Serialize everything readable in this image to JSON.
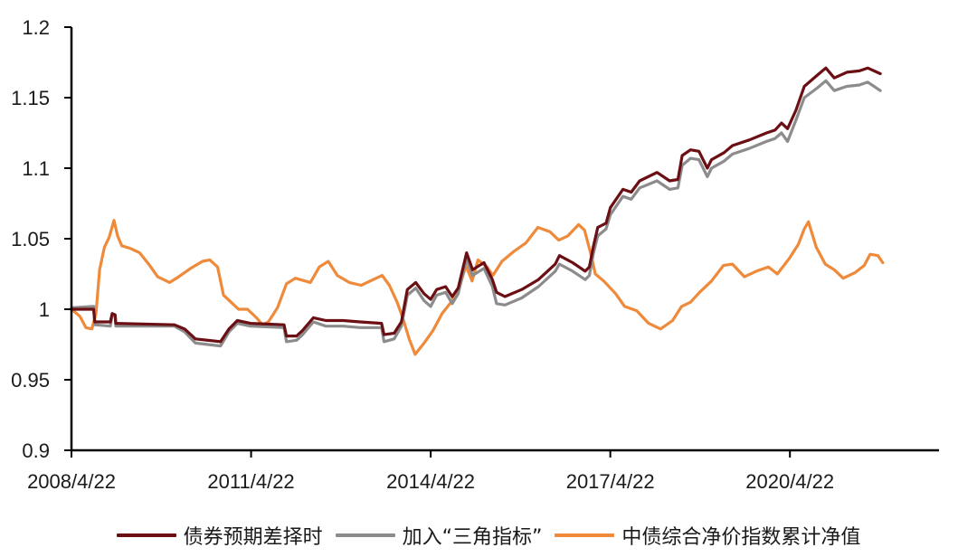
{
  "chart_data": {
    "type": "line",
    "title": "",
    "xlabel": "",
    "ylabel": "",
    "ylim": [
      0.9,
      1.2
    ],
    "xlim": [
      2008.31,
      2022.8
    ],
    "grid": false,
    "legend_position": "bottom",
    "y_ticks": [
      "0.9",
      "0.95",
      "1",
      "1.05",
      "1.1",
      "1.15",
      "1.2"
    ],
    "y_tick_values": [
      0.9,
      0.95,
      1.0,
      1.05,
      1.1,
      1.15,
      1.2
    ],
    "x_ticks": [
      "2008/4/22",
      "2011/4/22",
      "2014/4/22",
      "2017/4/22",
      "2020/4/22"
    ],
    "x_tick_values": [
      2008.31,
      2011.31,
      2014.31,
      2017.31,
      2020.31
    ],
    "series": [
      {
        "name": "债券预期差择时",
        "color": "#6b0f14",
        "points": [
          [
            2008.31,
            1.0
          ],
          [
            2008.68,
            1.0
          ],
          [
            2008.7,
            0.991
          ],
          [
            2008.96,
            0.991
          ],
          [
            2008.99,
            0.997
          ],
          [
            2009.04,
            0.996
          ],
          [
            2009.05,
            0.99
          ],
          [
            2010.03,
            0.989
          ],
          [
            2010.2,
            0.986
          ],
          [
            2010.38,
            0.979
          ],
          [
            2010.8,
            0.977
          ],
          [
            2010.94,
            0.986
          ],
          [
            2011.08,
            0.992
          ],
          [
            2011.3,
            0.99
          ],
          [
            2011.86,
            0.989
          ],
          [
            2011.9,
            0.981
          ],
          [
            2012.07,
            0.981
          ],
          [
            2012.17,
            0.985
          ],
          [
            2012.35,
            0.994
          ],
          [
            2012.56,
            0.992
          ],
          [
            2012.85,
            0.992
          ],
          [
            2013.13,
            0.991
          ],
          [
            2013.49,
            0.99
          ],
          [
            2013.53,
            0.982
          ],
          [
            2013.7,
            0.983
          ],
          [
            2013.82,
            0.991
          ],
          [
            2013.92,
            1.014
          ],
          [
            2014.06,
            1.019
          ],
          [
            2014.2,
            1.011
          ],
          [
            2014.31,
            1.007
          ],
          [
            2014.41,
            1.014
          ],
          [
            2014.56,
            1.016
          ],
          [
            2014.67,
            1.009
          ],
          [
            2014.77,
            1.015
          ],
          [
            2014.91,
            1.04
          ],
          [
            2015.01,
            1.028
          ],
          [
            2015.2,
            1.033
          ],
          [
            2015.34,
            1.021
          ],
          [
            2015.41,
            1.012
          ],
          [
            2015.55,
            1.009
          ],
          [
            2015.83,
            1.014
          ],
          [
            2016.11,
            1.021
          ],
          [
            2016.39,
            1.032
          ],
          [
            2016.46,
            1.038
          ],
          [
            2016.68,
            1.033
          ],
          [
            2016.89,
            1.027
          ],
          [
            2016.96,
            1.03
          ],
          [
            2017.03,
            1.045
          ],
          [
            2017.1,
            1.058
          ],
          [
            2017.24,
            1.061
          ],
          [
            2017.31,
            1.072
          ],
          [
            2017.52,
            1.085
          ],
          [
            2017.66,
            1.083
          ],
          [
            2017.8,
            1.091
          ],
          [
            2018.09,
            1.097
          ],
          [
            2018.3,
            1.091
          ],
          [
            2018.44,
            1.092
          ],
          [
            2018.51,
            1.109
          ],
          [
            2018.65,
            1.113
          ],
          [
            2018.79,
            1.112
          ],
          [
            2018.93,
            1.1
          ],
          [
            2019.0,
            1.106
          ],
          [
            2019.21,
            1.111
          ],
          [
            2019.35,
            1.116
          ],
          [
            2019.63,
            1.12
          ],
          [
            2019.92,
            1.125
          ],
          [
            2020.06,
            1.127
          ],
          [
            2020.17,
            1.132
          ],
          [
            2020.27,
            1.128
          ],
          [
            2020.41,
            1.141
          ],
          [
            2020.55,
            1.158
          ],
          [
            2020.77,
            1.166
          ],
          [
            2020.91,
            1.171
          ],
          [
            2021.05,
            1.164
          ],
          [
            2021.26,
            1.168
          ],
          [
            2021.47,
            1.169
          ],
          [
            2021.61,
            1.171
          ],
          [
            2021.82,
            1.167
          ]
        ]
      },
      {
        "name": "加入“三角指标”",
        "color": "#8c8c8c",
        "points": [
          [
            2008.31,
            1.001
          ],
          [
            2008.68,
            1.002
          ],
          [
            2008.7,
            0.989
          ],
          [
            2008.96,
            0.988
          ],
          [
            2008.99,
            0.996
          ],
          [
            2009.04,
            0.995
          ],
          [
            2009.05,
            0.988
          ],
          [
            2010.03,
            0.988
          ],
          [
            2010.2,
            0.984
          ],
          [
            2010.38,
            0.976
          ],
          [
            2010.8,
            0.974
          ],
          [
            2010.94,
            0.984
          ],
          [
            2011.08,
            0.99
          ],
          [
            2011.3,
            0.988
          ],
          [
            2011.86,
            0.987
          ],
          [
            2011.9,
            0.977
          ],
          [
            2012.07,
            0.978
          ],
          [
            2012.17,
            0.982
          ],
          [
            2012.35,
            0.991
          ],
          [
            2012.56,
            0.988
          ],
          [
            2012.85,
            0.988
          ],
          [
            2013.13,
            0.987
          ],
          [
            2013.49,
            0.987
          ],
          [
            2013.53,
            0.977
          ],
          [
            2013.7,
            0.979
          ],
          [
            2013.82,
            0.988
          ],
          [
            2013.92,
            1.01
          ],
          [
            2014.06,
            1.015
          ],
          [
            2014.2,
            1.006
          ],
          [
            2014.31,
            1.002
          ],
          [
            2014.41,
            1.01
          ],
          [
            2014.56,
            1.012
          ],
          [
            2014.67,
            1.004
          ],
          [
            2014.77,
            1.011
          ],
          [
            2014.91,
            1.036
          ],
          [
            2015.01,
            1.024
          ],
          [
            2015.2,
            1.029
          ],
          [
            2015.34,
            1.016
          ],
          [
            2015.41,
            1.004
          ],
          [
            2015.55,
            1.003
          ],
          [
            2015.83,
            1.008
          ],
          [
            2016.11,
            1.016
          ],
          [
            2016.39,
            1.027
          ],
          [
            2016.46,
            1.032
          ],
          [
            2016.68,
            1.027
          ],
          [
            2016.89,
            1.021
          ],
          [
            2016.96,
            1.024
          ],
          [
            2017.03,
            1.04
          ],
          [
            2017.1,
            1.052
          ],
          [
            2017.24,
            1.057
          ],
          [
            2017.31,
            1.067
          ],
          [
            2017.52,
            1.08
          ],
          [
            2017.66,
            1.078
          ],
          [
            2017.8,
            1.086
          ],
          [
            2018.09,
            1.091
          ],
          [
            2018.3,
            1.085
          ],
          [
            2018.44,
            1.086
          ],
          [
            2018.51,
            1.102
          ],
          [
            2018.65,
            1.107
          ],
          [
            2018.79,
            1.106
          ],
          [
            2018.93,
            1.094
          ],
          [
            2019.0,
            1.1
          ],
          [
            2019.21,
            1.105
          ],
          [
            2019.35,
            1.11
          ],
          [
            2019.63,
            1.114
          ],
          [
            2019.92,
            1.119
          ],
          [
            2020.06,
            1.121
          ],
          [
            2020.17,
            1.125
          ],
          [
            2020.27,
            1.119
          ],
          [
            2020.41,
            1.134
          ],
          [
            2020.55,
            1.15
          ],
          [
            2020.77,
            1.157
          ],
          [
            2020.91,
            1.162
          ],
          [
            2021.05,
            1.155
          ],
          [
            2021.26,
            1.158
          ],
          [
            2021.47,
            1.159
          ],
          [
            2021.61,
            1.161
          ],
          [
            2021.82,
            1.155
          ]
        ]
      },
      {
        "name": "中债综合净价指数累计净值",
        "color": "#ee8a3a",
        "points": [
          [
            2008.31,
            1.0
          ],
          [
            2008.45,
            0.995
          ],
          [
            2008.55,
            0.987
          ],
          [
            2008.65,
            0.986
          ],
          [
            2008.72,
            0.997
          ],
          [
            2008.78,
            1.028
          ],
          [
            2008.86,
            1.044
          ],
          [
            2008.94,
            1.051
          ],
          [
            2009.02,
            1.063
          ],
          [
            2009.08,
            1.052
          ],
          [
            2009.15,
            1.045
          ],
          [
            2009.3,
            1.043
          ],
          [
            2009.45,
            1.04
          ],
          [
            2009.6,
            1.032
          ],
          [
            2009.75,
            1.023
          ],
          [
            2009.95,
            1.019
          ],
          [
            2010.1,
            1.023
          ],
          [
            2010.3,
            1.029
          ],
          [
            2010.5,
            1.034
          ],
          [
            2010.62,
            1.035
          ],
          [
            2010.75,
            1.03
          ],
          [
            2010.85,
            1.01
          ],
          [
            2010.95,
            1.006
          ],
          [
            2011.1,
            1.0
          ],
          [
            2011.25,
            1.0
          ],
          [
            2011.4,
            0.994
          ],
          [
            2011.5,
            0.989
          ],
          [
            2011.6,
            0.991
          ],
          [
            2011.75,
            1.001
          ],
          [
            2011.9,
            1.018
          ],
          [
            2012.05,
            1.022
          ],
          [
            2012.3,
            1.019
          ],
          [
            2012.45,
            1.03
          ],
          [
            2012.6,
            1.034
          ],
          [
            2012.75,
            1.024
          ],
          [
            2012.95,
            1.019
          ],
          [
            2013.15,
            1.017
          ],
          [
            2013.35,
            1.021
          ],
          [
            2013.5,
            1.024
          ],
          [
            2013.62,
            1.017
          ],
          [
            2013.75,
            1.005
          ],
          [
            2013.85,
            0.993
          ],
          [
            2013.95,
            0.979
          ],
          [
            2014.05,
            0.968
          ],
          [
            2014.2,
            0.976
          ],
          [
            2014.35,
            0.985
          ],
          [
            2014.5,
            0.997
          ],
          [
            2014.65,
            1.005
          ],
          [
            2014.8,
            1.017
          ],
          [
            2014.9,
            1.031
          ],
          [
            2015.0,
            1.02
          ],
          [
            2015.1,
            1.035
          ],
          [
            2015.25,
            1.03
          ],
          [
            2015.35,
            1.024
          ],
          [
            2015.5,
            1.034
          ],
          [
            2015.7,
            1.041
          ],
          [
            2015.9,
            1.047
          ],
          [
            2016.1,
            1.058
          ],
          [
            2016.3,
            1.055
          ],
          [
            2016.45,
            1.049
          ],
          [
            2016.6,
            1.052
          ],
          [
            2016.78,
            1.06
          ],
          [
            2016.88,
            1.056
          ],
          [
            2016.98,
            1.04
          ],
          [
            2017.06,
            1.025
          ],
          [
            2017.2,
            1.02
          ],
          [
            2017.4,
            1.011
          ],
          [
            2017.55,
            1.002
          ],
          [
            2017.75,
            0.999
          ],
          [
            2017.95,
            0.99
          ],
          [
            2018.15,
            0.986
          ],
          [
            2018.35,
            0.992
          ],
          [
            2018.5,
            1.002
          ],
          [
            2018.65,
            1.005
          ],
          [
            2018.8,
            1.012
          ],
          [
            2019.0,
            1.02
          ],
          [
            2019.2,
            1.031
          ],
          [
            2019.35,
            1.032
          ],
          [
            2019.55,
            1.023
          ],
          [
            2019.75,
            1.027
          ],
          [
            2019.95,
            1.03
          ],
          [
            2020.1,
            1.025
          ],
          [
            2020.3,
            1.036
          ],
          [
            2020.45,
            1.046
          ],
          [
            2020.55,
            1.057
          ],
          [
            2020.62,
            1.062
          ],
          [
            2020.75,
            1.044
          ],
          [
            2020.9,
            1.032
          ],
          [
            2021.05,
            1.028
          ],
          [
            2021.2,
            1.022
          ],
          [
            2021.4,
            1.026
          ],
          [
            2021.55,
            1.031
          ],
          [
            2021.65,
            1.039
          ],
          [
            2021.78,
            1.038
          ],
          [
            2021.86,
            1.033
          ]
        ]
      }
    ]
  },
  "legend": {
    "items": [
      {
        "label": "债券预期差择时",
        "color": "#6b0f14"
      },
      {
        "label": "加入“三角指标”",
        "color": "#8c8c8c"
      },
      {
        "label": "中债综合净价指数累计净值",
        "color": "#ee8a3a"
      }
    ]
  }
}
